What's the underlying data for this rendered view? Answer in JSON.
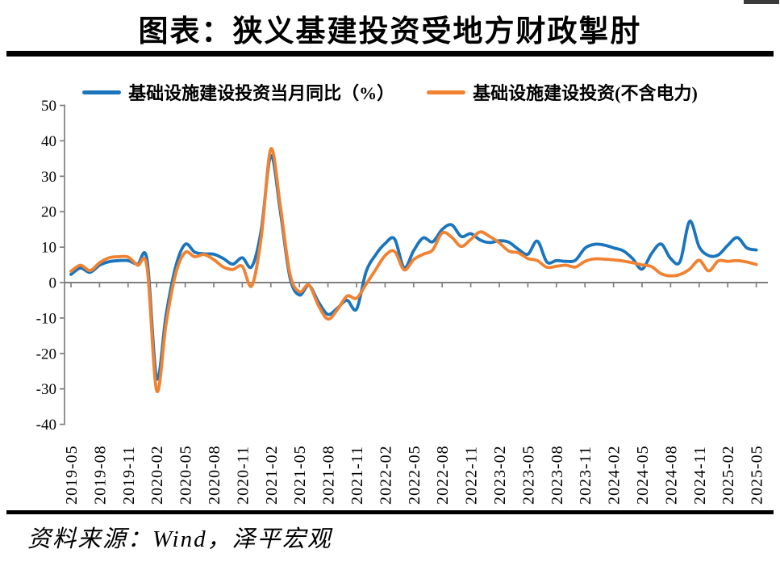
{
  "title": "图表：狭义基建投资受地方财政掣肘",
  "source_note": "资料来源：Wind，泽平宏观",
  "colors": {
    "series1_blue": "#1B75BC",
    "series2_orange": "#F08232",
    "axis_gray": "#7F7F7F",
    "rule_black": "#000000"
  },
  "chart_data": {
    "type": "line",
    "title": "图表：狭义基建投资受地方财政掣肘",
    "smoothed": true,
    "grid": false,
    "legend_position": "top",
    "x_start": "2019-05",
    "x_end": "2025-05",
    "x_interval_months": 1,
    "x_tick_labels": [
      "2019-05",
      "2019-08",
      "2019-11",
      "2020-02",
      "2020-05",
      "2020-08",
      "2020-11",
      "2021-02",
      "2021-05",
      "2021-08",
      "2021-11",
      "2022-02",
      "2022-05",
      "2022-08",
      "2022-11",
      "2023-02",
      "2023-05",
      "2023-08",
      "2023-11",
      "2024-02",
      "2024-05",
      "2024-08",
      "2024-11",
      "2025-02",
      "2025-05"
    ],
    "ylim": [
      -40,
      50
    ],
    "y_ticks": [
      50,
      40,
      30,
      20,
      10,
      0,
      -10,
      -20,
      -30,
      -40
    ],
    "series": [
      {
        "name": "基础设施建设投资当月同比（%）",
        "color": "#1B75BC",
        "values": [
          2.3,
          4.1,
          2.9,
          4.9,
          5.9,
          6.2,
          6.2,
          5.2,
          6.3,
          -27.0,
          -9.0,
          4.5,
          10.8,
          8.6,
          8.1,
          8.0,
          6.8,
          5.2,
          7.0,
          4.5,
          15.0,
          35.8,
          20.0,
          1.5,
          -3.5,
          -0.8,
          -5.5,
          -9.0,
          -7.2,
          -5.0,
          -7.5,
          3.0,
          7.8,
          11.0,
          12.3,
          4.2,
          9.0,
          12.6,
          11.5,
          15.0,
          16.3,
          13.0,
          13.8,
          12.0,
          11.3,
          11.8,
          11.4,
          9.4,
          8.0,
          11.7,
          5.8,
          6.2,
          6.0,
          6.3,
          9.7,
          10.8,
          10.6,
          9.8,
          9.0,
          6.8,
          3.8,
          8.2,
          10.9,
          6.8,
          6.0,
          17.3,
          10.1,
          7.6,
          7.8,
          10.5,
          12.7,
          9.8,
          9.2
        ]
      },
      {
        "name": "基础设施建设投资(不含电力)",
        "color": "#F08232",
        "values": [
          3.2,
          4.9,
          3.4,
          5.6,
          7.0,
          7.3,
          7.2,
          4.9,
          4.2,
          -30.5,
          -11.5,
          2.5,
          8.5,
          7.3,
          7.9,
          6.5,
          4.4,
          3.7,
          4.6,
          -0.9,
          13.0,
          37.7,
          21.5,
          2.5,
          -2.6,
          -0.7,
          -6.5,
          -10.3,
          -7.6,
          -3.8,
          -4.4,
          -0.5,
          3.6,
          7.6,
          8.8,
          3.6,
          6.5,
          8.0,
          9.2,
          14.0,
          12.8,
          10.2,
          12.2,
          14.3,
          13.0,
          11.2,
          8.9,
          8.4,
          6.8,
          6.2,
          4.3,
          4.6,
          4.9,
          4.4,
          6.0,
          6.7,
          6.6,
          6.4,
          6.1,
          5.6,
          5.0,
          4.5,
          2.5,
          1.9,
          2.3,
          3.8,
          6.3,
          3.3,
          6.1,
          6.0,
          6.2,
          5.8,
          5.1
        ]
      }
    ]
  }
}
